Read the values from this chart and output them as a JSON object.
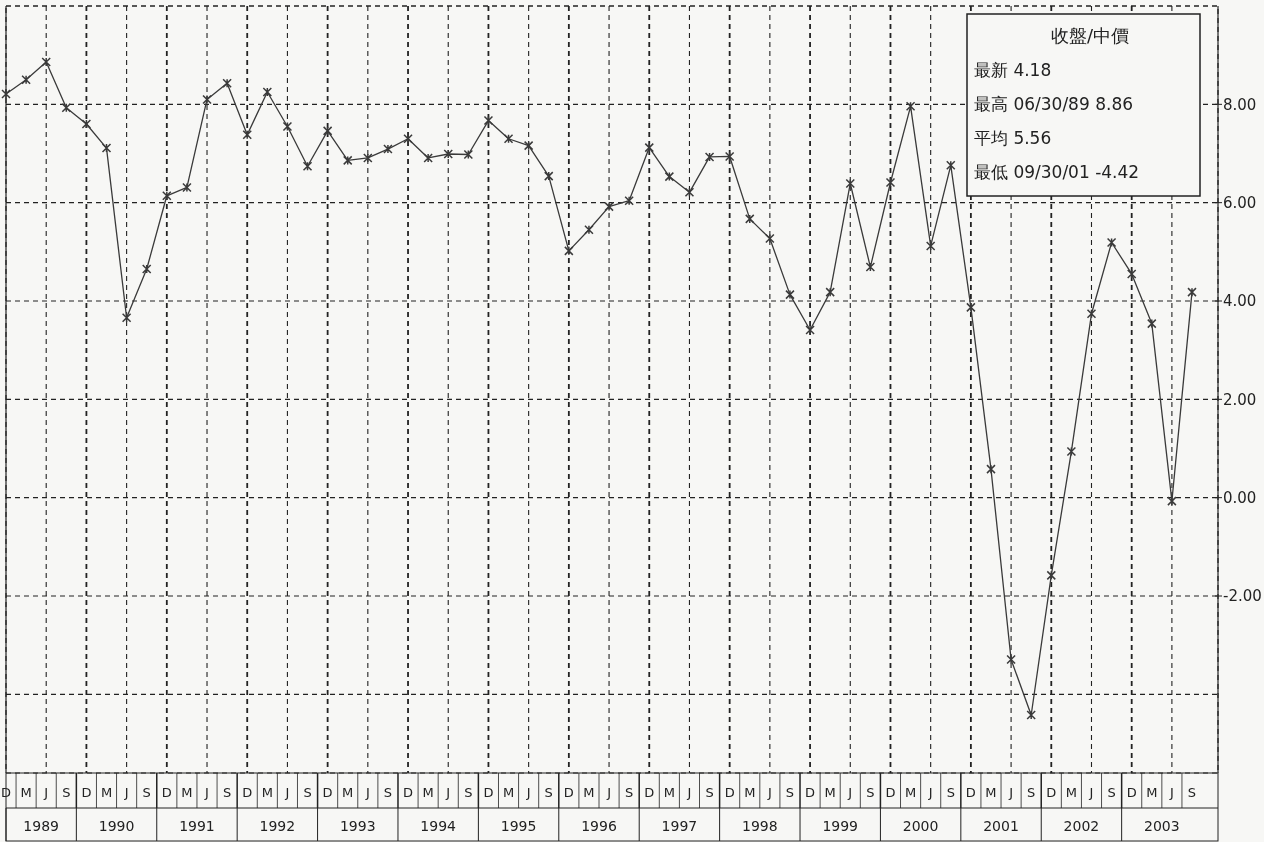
{
  "chart_data": {
    "type": "line",
    "title": "收盤/中價",
    "categories": [
      "D",
      "M",
      "J",
      "S",
      "D",
      "M",
      "J",
      "S",
      "D",
      "M",
      "J",
      "S",
      "D",
      "M",
      "J",
      "S",
      "D",
      "M",
      "J",
      "S",
      "D",
      "M",
      "J",
      "S",
      "D",
      "M",
      "J",
      "S",
      "D",
      "M",
      "J",
      "S",
      "D",
      "M",
      "J",
      "S",
      "D",
      "M",
      "J",
      "S",
      "D",
      "M",
      "J",
      "S",
      "D",
      "M",
      "J",
      "S",
      "D",
      "M",
      "J",
      "S",
      "D",
      "M",
      "J",
      "S",
      "D",
      "M",
      "J",
      "S"
    ],
    "series": [
      {
        "color": "#3a3a3a",
        "values": [
          8.21,
          8.5,
          8.86,
          7.93,
          7.6,
          7.11,
          3.66,
          4.65,
          6.14,
          6.31,
          8.1,
          8.43,
          7.38,
          8.25,
          7.55,
          6.74,
          7.46,
          6.86,
          6.91,
          7.09,
          7.3,
          6.91,
          6.99,
          6.98,
          7.67,
          7.3,
          7.16,
          6.54,
          5.02,
          5.45,
          5.92,
          6.04,
          7.12,
          6.53,
          6.21,
          6.93,
          6.94,
          5.67,
          5.27,
          4.13,
          3.41,
          4.18,
          6.39,
          4.69,
          6.41,
          7.96,
          5.12,
          6.76,
          3.87,
          0.58,
          -3.29,
          -4.42,
          -1.58,
          0.94,
          3.74,
          5.19,
          4.55,
          3.54,
          -0.07,
          4.18
        ]
      }
    ],
    "ylim": [
      -5.6,
      10
    ],
    "yticks": [
      {
        "value": -4,
        "label": null
      },
      {
        "value": -2,
        "label": "-2.00"
      },
      {
        "value": 0,
        "label": "0.00"
      },
      {
        "value": 2,
        "label": "2.00"
      },
      {
        "value": 4,
        "label": "4.00"
      },
      {
        "value": 6,
        "label": "6.00"
      },
      {
        "value": 8,
        "label": "8.00"
      },
      {
        "value": 10,
        "label": null
      }
    ],
    "grid": true,
    "marker": "cross",
    "line_style": "solid",
    "annotations": [
      "最新 4.18",
      "最高 06/30/89 8.86",
      "平均 5.56",
      "最低 09/30/01 -4.42",
      "1989",
      "1990",
      "1991",
      "1992",
      "1993",
      "1994",
      "1995",
      "1996",
      "1997",
      "1998",
      "1999",
      "2000",
      "2001",
      "2002",
      "2003"
    ]
  }
}
